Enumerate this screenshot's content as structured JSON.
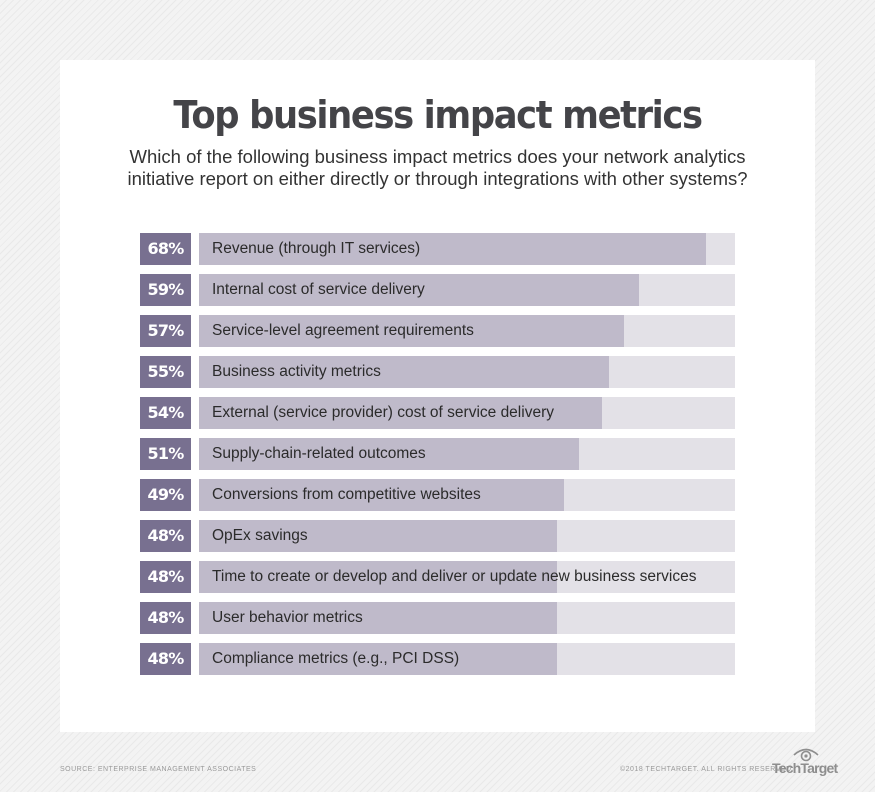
{
  "header": {
    "title": "Top business impact metrics",
    "subtitle_line1": "Which of the following business impact metrics does your network analytics",
    "subtitle_line2": "initiative report on either directly or through integrations with other systems?"
  },
  "rows": [
    {
      "pct": "68%",
      "label": "Revenue (through IT services)"
    },
    {
      "pct": "59%",
      "label": "Internal cost of service delivery"
    },
    {
      "pct": "57%",
      "label": "Service-level agreement requirements"
    },
    {
      "pct": "55%",
      "label": "Business activity metrics"
    },
    {
      "pct": "54%",
      "label": "External (service provider) cost of service delivery"
    },
    {
      "pct": "51%",
      "label": "Supply-chain-related outcomes"
    },
    {
      "pct": "49%",
      "label": "Conversions from competitive websites"
    },
    {
      "pct": "48%",
      "label": "OpEx savings"
    },
    {
      "pct": "48%",
      "label": "Time to create or develop and deliver or update new business services"
    },
    {
      "pct": "48%",
      "label": "User behavior metrics"
    },
    {
      "pct": "48%",
      "label": "Compliance metrics (e.g., PCI DSS)"
    }
  ],
  "footer": {
    "source": "SOURCE: ENTERPRISE MANAGEMENT ASSOCIATES",
    "copyright": "©2018 TECHTARGET. ALL RIGHTS RESERVED",
    "logo": "TechTarget",
    "logo_icon": "eye-icon"
  },
  "colors": {
    "badge": "#787090",
    "fill": "#bfbaca",
    "track": "#e3e1e7",
    "title": "#444448"
  },
  "chart_data": {
    "type": "bar",
    "orientation": "horizontal",
    "title": "Top business impact metrics",
    "subtitle": "Which of the following business impact metrics does your network analytics initiative report on either directly or through integrations with other systems?",
    "categories": [
      "Revenue (through IT services)",
      "Internal cost of service delivery",
      "Service-level agreement requirements",
      "Business activity metrics",
      "External (service provider) cost of service delivery",
      "Supply-chain-related outcomes",
      "Conversions from competitive websites",
      "OpEx savings",
      "Time to create or develop and deliver or update new business services",
      "User behavior metrics",
      "Compliance metrics (e.g., PCI DSS)"
    ],
    "values": [
      68,
      59,
      57,
      55,
      54,
      51,
      49,
      48,
      48,
      48,
      48
    ],
    "unit": "%",
    "xlabel": "",
    "ylabel": "",
    "xlim": [
      0,
      70
    ],
    "grid": false,
    "legend": null,
    "source": "SOURCE: ENTERPRISE MANAGEMENT ASSOCIATES"
  }
}
